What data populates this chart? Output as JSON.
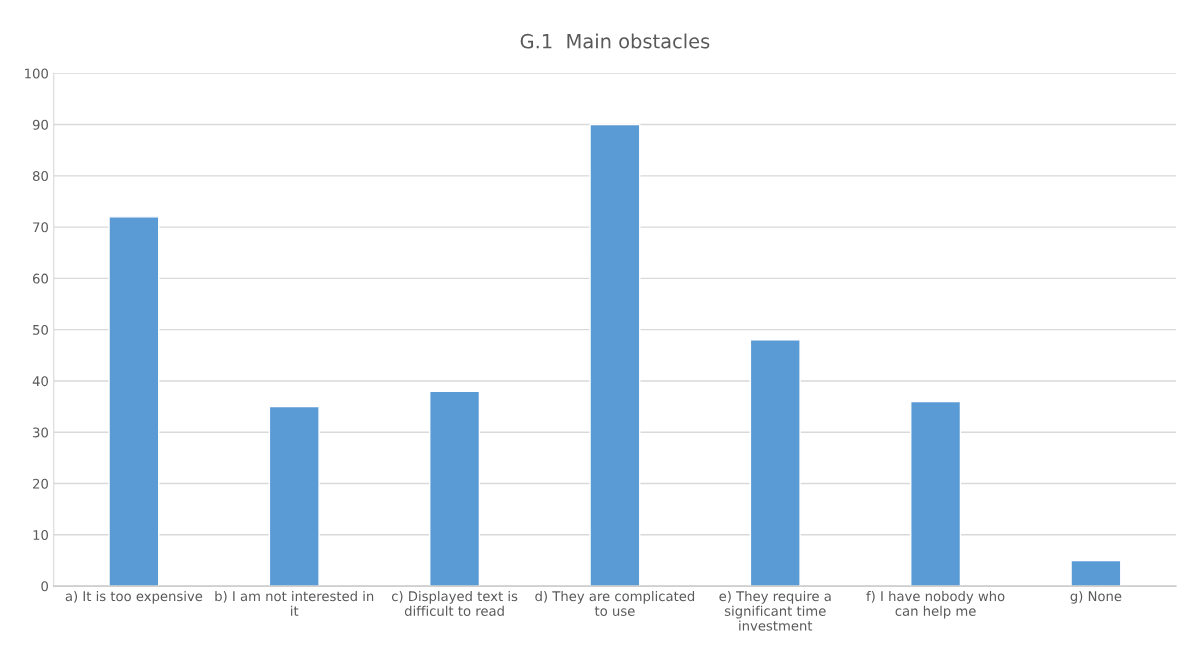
{
  "chart_data": {
    "type": "bar",
    "title": "G.1  Main obstacles",
    "categories": [
      "a) It is too expensive",
      "b) I am not interested in\nit",
      "c) Displayed text is\ndifficult to read",
      "d) They are complicated\nto use",
      "e) They require a\nsignificant time\ninvestment",
      "f) I have nobody who\ncan help me",
      "g) None"
    ],
    "values": [
      72,
      35,
      38,
      90,
      48,
      36,
      5
    ],
    "color": "#5b9bd5",
    "ylim": [
      0,
      100
    ],
    "yticks": [
      0,
      10,
      20,
      30,
      40,
      50,
      60,
      70,
      80,
      90,
      100
    ],
    "grid": "y"
  }
}
